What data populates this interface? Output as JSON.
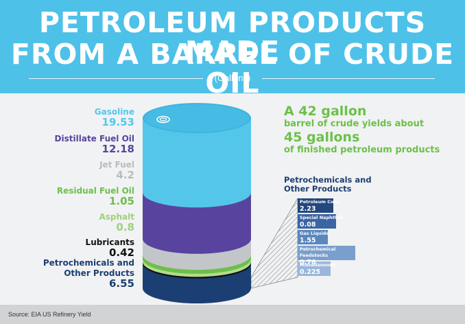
{
  "header": {
    "title_line1": "PETROLEUM PRODUCTS MADE",
    "title_line2": "FROM A BARREL OF CRUDE OIL",
    "unit": "(Gallons)"
  },
  "headline": {
    "line1": "A 42 gallon",
    "line2": "barrel of crude yields about",
    "line3": "45 gallons",
    "line4": "of finished petroleum products"
  },
  "petrochem": {
    "title_line1": "Petrochemicals and",
    "title_line2": "Other Products"
  },
  "footer": {
    "source": "Source: EIA US Refinery Yield"
  },
  "colors": {
    "header_bg": "#4ec1e9",
    "green": "#6cc04a",
    "navy": "#1c3f73"
  },
  "chart_data": {
    "type": "stacked-bar",
    "shape": "barrel",
    "unit": "(Gallons)",
    "series": [
      {
        "name": "Gasoline",
        "value": 19.53,
        "label": "19.53",
        "color": "#54c6ea",
        "text_color": "#54c6ea"
      },
      {
        "name": "Distillate Fuel Oil",
        "value": 12.18,
        "label": "12.18",
        "color": "#58449e",
        "text_color": "#58449e"
      },
      {
        "name": "Jet Fuel",
        "value": 4.2,
        "label": "4.2",
        "color": "#c3c6c9",
        "text_color": "#b9bcbf"
      },
      {
        "name": "Residual Fuel Oil",
        "value": 1.05,
        "label": "1.05",
        "color": "#6cc04a",
        "text_color": "#6cc04a"
      },
      {
        "name": "Asphalt",
        "value": 0.8,
        "label": "0.8",
        "color": "#b3dc8e",
        "text_color": "#9fd17a"
      },
      {
        "name": "Lubricants",
        "value": 0.42,
        "label": "0.42",
        "color": "#111111",
        "text_color": "#111111"
      },
      {
        "name": "Petrochemicals and Other Products",
        "value": 6.55,
        "label": "6.55",
        "color": "#1c3f73",
        "text_color": "#1c3f73"
      }
    ],
    "breakdown": {
      "parent": "Petrochemicals and Other Products",
      "items": [
        {
          "name": "Petroleum Coke",
          "value": 2.23,
          "label": "2.23",
          "color": "#24477d"
        },
        {
          "name": "Special Naphthas",
          "value": 0.08,
          "label": "0.08",
          "color": "#3b64a3"
        },
        {
          "name": "Gas Liquids",
          "value": 1.55,
          "label": "1.55",
          "color": "#5a87bf"
        },
        {
          "name": "Petrochemical Feedstocks",
          "value": 0.76,
          "label": "0.76",
          "color": "#7b9fcc"
        },
        {
          "name": "Miscellaneous",
          "value": 0.225,
          "label": "0.225",
          "color": "#9bb6da"
        }
      ]
    }
  }
}
